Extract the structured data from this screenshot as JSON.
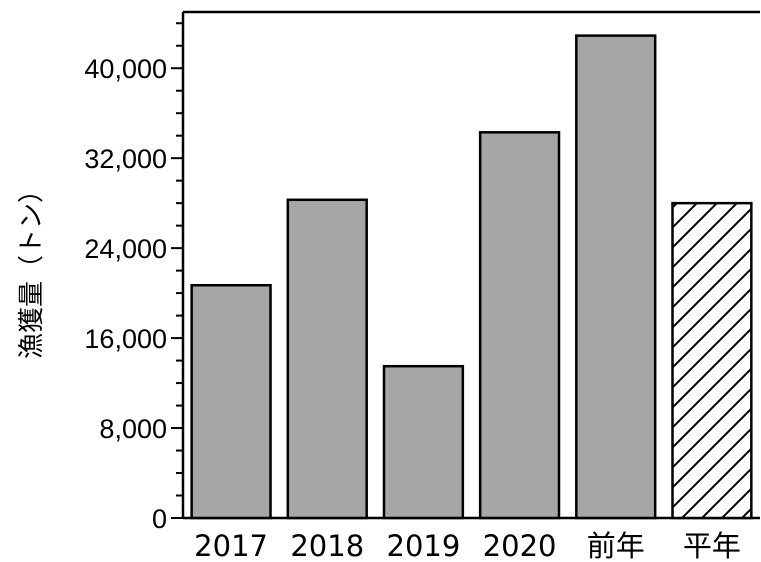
{
  "chart_data": {
    "type": "bar",
    "ylabel": "漁獲量（トン）",
    "categories": [
      "2017",
      "2018",
      "2019",
      "2020",
      "前年",
      "平年"
    ],
    "values": [
      20700,
      28300,
      13500,
      34300,
      42900,
      28000
    ],
    "series_styles": [
      "solid",
      "solid",
      "solid",
      "solid",
      "solid",
      "hatched"
    ],
    "ylim": [
      0,
      45000
    ],
    "yticks": [
      0,
      8000,
      16000,
      24000,
      32000,
      40000
    ],
    "ytick_labels": [
      "0",
      "8,000",
      "16,000",
      "24,000",
      "32,000",
      "40,000"
    ],
    "minor_tick_step": 2000,
    "grid": false,
    "legend": "none",
    "colors": {
      "bar_fill": "#a6a6a6",
      "bar_stroke": "#000000",
      "hatch_stroke": "#000000",
      "axis": "#000000"
    }
  }
}
